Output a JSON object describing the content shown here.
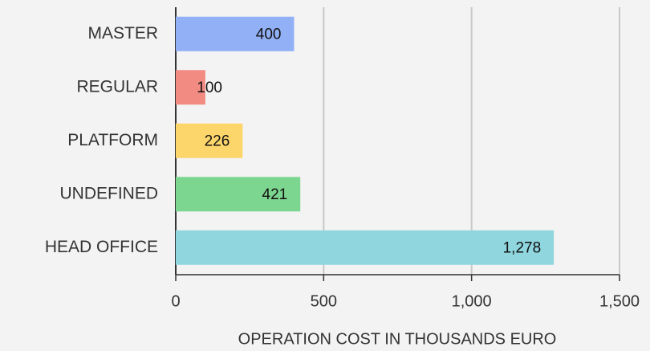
{
  "chart_data": {
    "type": "bar",
    "orientation": "horizontal",
    "x_label": "OPERATION COST IN THOUSANDS EURO",
    "categories": [
      "MASTER",
      "REGULAR",
      "PLATFORM",
      "UNDEFINED",
      "HEAD OFFICE"
    ],
    "values": [
      400,
      100,
      226,
      421,
      1278
    ],
    "value_labels": [
      "400",
      "100",
      "226",
      "421",
      "1,278"
    ],
    "colors": [
      "#92b0f6",
      "#f28b82",
      "#fdd66b",
      "#7dd68f",
      "#8fd6de"
    ],
    "xlim": [
      0,
      1500
    ],
    "xticks": [
      0,
      500,
      {
        "value": 1000,
        "label": "1,000"
      },
      {
        "value": 1500,
        "label": "1,500"
      }
    ],
    "grid": true
  }
}
